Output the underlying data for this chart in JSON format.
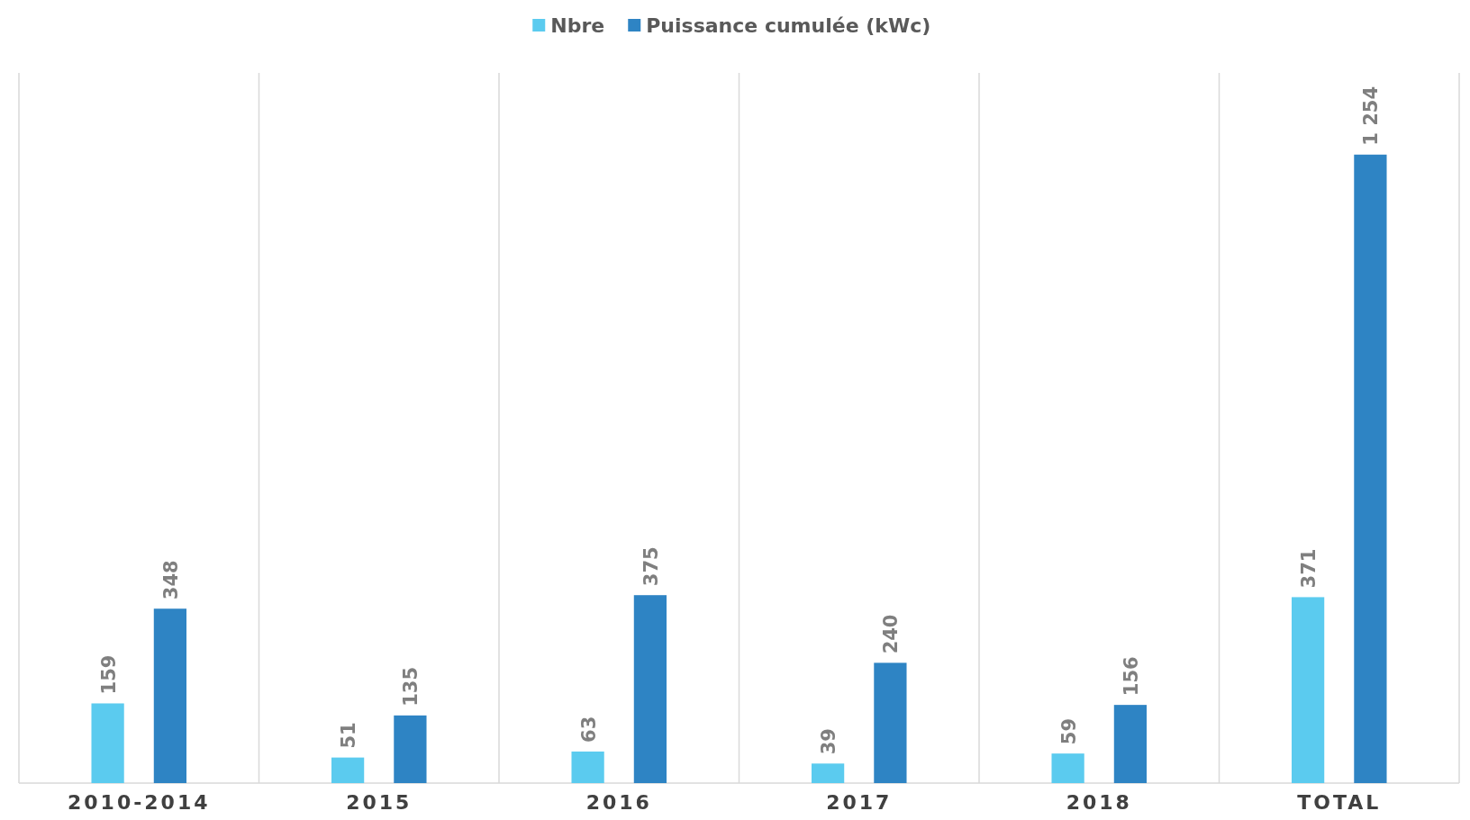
{
  "chart_data": {
    "type": "bar",
    "categories": [
      "2010-2014",
      "2015",
      "2016",
      "2017",
      "2018",
      "TOTAL"
    ],
    "series": [
      {
        "name": "Nbre",
        "color": "#5bcbef",
        "values": [
          159,
          51,
          63,
          39,
          59,
          371
        ]
      },
      {
        "name": "Puissance cumulée (kWc)",
        "color": "#2e84c4",
        "values": [
          348,
          135,
          375,
          240,
          156,
          1254
        ]
      }
    ],
    "data_labels": true,
    "grid": "x",
    "legend": "top"
  }
}
